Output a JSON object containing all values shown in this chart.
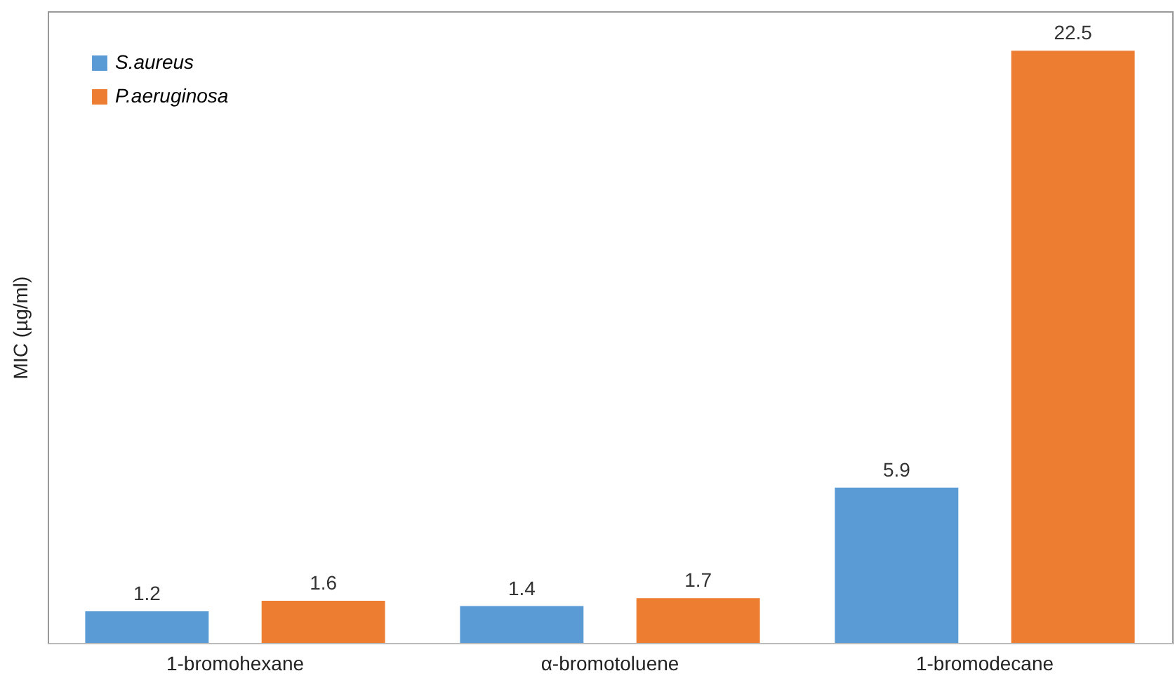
{
  "chart_data": {
    "type": "bar",
    "ylabel": "MIC (µg/ml)",
    "categories": [
      "1-bromohexane",
      "α-bromotoluene",
      "1-bromodecane"
    ],
    "series": [
      {
        "name": "S.aureus",
        "color": "#5b9bd5",
        "values": [
          1.2,
          1.4,
          5.9
        ]
      },
      {
        "name": "P.aeruginosa",
        "color": "#ed7d31",
        "values": [
          1.6,
          1.7,
          22.5
        ]
      }
    ],
    "data_labels": true,
    "legend": "top left",
    "grid": false
  }
}
